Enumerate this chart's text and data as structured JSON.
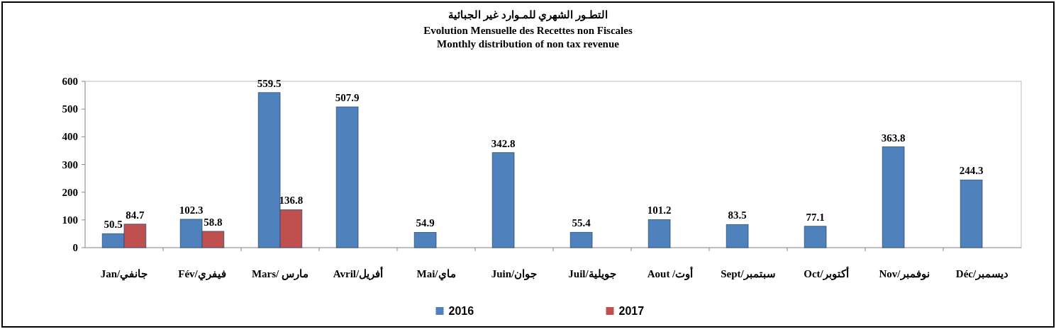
{
  "chart_data": {
    "type": "bar",
    "title": "التطـور الشهري  للمـوارد غير الجبائية",
    "subtitle": "Evolution Mensuelle des Recettes non Fiscales\nMonthly distribution of non tax revenue",
    "categories": [
      "Jan/جانفي",
      "Fév/فيفري",
      "Mars/ مارس",
      "Avril/أفريل",
      "Mai/ماي",
      "Juin/جوان",
      "Juil/جويلية",
      "Aout /أوت",
      "Sept/سبتمبر",
      "Oct/أكتوبر",
      "Nov/نوفمبر",
      "Déc/ديسمبر"
    ],
    "series": [
      {
        "name": "2016",
        "color": "#4f81bd",
        "values": [
          50.5,
          102.3,
          559.5,
          507.9,
          54.9,
          342.8,
          55.4,
          101.2,
          83.5,
          77.1,
          363.8,
          244.3
        ]
      },
      {
        "name": "2017",
        "color": "#c0504d",
        "values": [
          84.7,
          58.8,
          136.8,
          null,
          null,
          null,
          null,
          null,
          null,
          null,
          null,
          null
        ]
      }
    ],
    "ylim": [
      0,
      600
    ],
    "yticks": [
      0,
      100,
      200,
      300,
      400,
      500,
      600
    ],
    "data_labels": true,
    "legend": "bottom"
  }
}
